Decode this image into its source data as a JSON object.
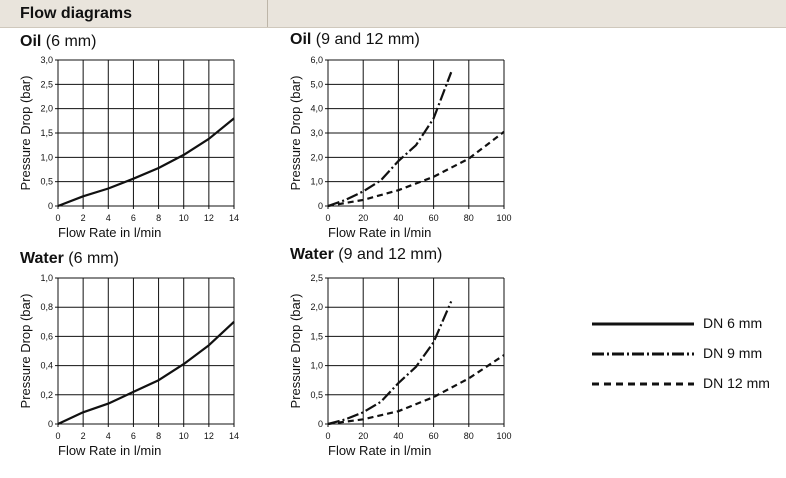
{
  "header": {
    "title": "Flow diagrams"
  },
  "legend": [
    {
      "label": "DN 6 mm",
      "style": "solid"
    },
    {
      "label": "DN 9 mm",
      "style": "dashdot"
    },
    {
      "label": "DN 12 mm",
      "style": "dashed"
    }
  ],
  "charts": [
    {
      "title_bold": "Oil",
      "title_rest": " (6 mm)"
    },
    {
      "title_bold": "Oil",
      "title_rest": " (9 and 12 mm)"
    },
    {
      "title_bold": "Water",
      "title_rest": " (6 mm)"
    },
    {
      "title_bold": "Water",
      "title_rest": " (9 and 12 mm)"
    }
  ],
  "chart_data": [
    {
      "type": "line",
      "title": "Oil (6 mm)",
      "xlabel": "Flow Rate in l/min",
      "ylabel": "Pressure Drop (bar)",
      "xlim": [
        0,
        14
      ],
      "ylim": [
        0,
        3
      ],
      "xticks": [
        0,
        2,
        4,
        6,
        8,
        10,
        12,
        14
      ],
      "xtick_labels": [
        "0",
        "2",
        "4",
        "6",
        "8",
        "10",
        "12",
        "14"
      ],
      "yticks": [
        0,
        0.5,
        1,
        1.5,
        2,
        2.5,
        3
      ],
      "ytick_labels": [
        "0",
        "0,5",
        "1,0",
        "1,5",
        "2,0",
        "2,5",
        "3,0"
      ],
      "grid": true,
      "series": [
        {
          "style": "solid",
          "x": [
            0,
            2,
            4,
            6,
            8,
            10,
            12,
            14
          ],
          "y": [
            0,
            0.2,
            0.36,
            0.56,
            0.78,
            1.05,
            1.38,
            1.8
          ]
        }
      ]
    },
    {
      "type": "line",
      "title": "Oil (9 and 12 mm)",
      "xlabel": "Flow Rate in l/min",
      "ylabel": "Pressure Drop (bar)",
      "xlim": [
        0,
        100
      ],
      "ylim": [
        0,
        6
      ],
      "xticks": [
        0,
        20,
        40,
        60,
        80,
        100
      ],
      "xtick_labels": [
        "0",
        "20",
        "40",
        "60",
        "80",
        "100"
      ],
      "yticks": [
        0,
        1,
        2,
        3,
        4,
        5,
        6
      ],
      "ytick_labels": [
        "0",
        "1,0",
        "2,0",
        "3,0",
        "4,0",
        "5,0",
        "6,0"
      ],
      "grid": true,
      "series": [
        {
          "style": "dashdot",
          "x": [
            0,
            10,
            20,
            30,
            40,
            50,
            60,
            70
          ],
          "y": [
            0,
            0.25,
            0.6,
            1.05,
            1.85,
            2.5,
            3.6,
            5.5
          ]
        },
        {
          "style": "dashed",
          "x": [
            0,
            20,
            40,
            60,
            80,
            100
          ],
          "y": [
            0,
            0.25,
            0.65,
            1.2,
            1.95,
            3.05
          ]
        }
      ]
    },
    {
      "type": "line",
      "title": "Water (6 mm)",
      "xlabel": "Flow Rate in l/min",
      "ylabel": "Pressure Drop (bar)",
      "xlim": [
        0,
        14
      ],
      "ylim": [
        0,
        1
      ],
      "xticks": [
        0,
        2,
        4,
        6,
        8,
        10,
        12,
        14
      ],
      "xtick_labels": [
        "0",
        "2",
        "4",
        "6",
        "8",
        "10",
        "12",
        "14"
      ],
      "yticks": [
        0,
        0.2,
        0.4,
        0.6,
        0.8,
        1
      ],
      "ytick_labels": [
        "0",
        "0,2",
        "0,4",
        "0,6",
        "0,8",
        "1,0"
      ],
      "grid": true,
      "series": [
        {
          "style": "solid",
          "x": [
            0,
            2,
            4,
            6,
            8,
            10,
            12,
            14
          ],
          "y": [
            0,
            0.08,
            0.14,
            0.22,
            0.3,
            0.41,
            0.54,
            0.7
          ]
        }
      ]
    },
    {
      "type": "line",
      "title": "Water (9 and 12 mm)",
      "xlabel": "Flow Rate in l/min",
      "ylabel": "Pressure Drop (bar)",
      "xlim": [
        0,
        100
      ],
      "ylim": [
        0,
        2.5
      ],
      "xticks": [
        0,
        20,
        40,
        60,
        80,
        100
      ],
      "xtick_labels": [
        "0",
        "20",
        "40",
        "60",
        "80",
        "100"
      ],
      "yticks": [
        0,
        0.5,
        1,
        1.5,
        2,
        2.5
      ],
      "ytick_labels": [
        "0",
        "0,5",
        "1,0",
        "1,5",
        "2,0",
        "2,5"
      ],
      "grid": true,
      "series": [
        {
          "style": "dashdot",
          "x": [
            0,
            10,
            20,
            30,
            40,
            50,
            60,
            70
          ],
          "y": [
            0,
            0.08,
            0.2,
            0.38,
            0.7,
            0.98,
            1.4,
            2.1
          ]
        },
        {
          "style": "dashed",
          "x": [
            0,
            20,
            40,
            60,
            80,
            100
          ],
          "y": [
            0,
            0.08,
            0.22,
            0.46,
            0.78,
            1.18
          ]
        }
      ]
    }
  ]
}
